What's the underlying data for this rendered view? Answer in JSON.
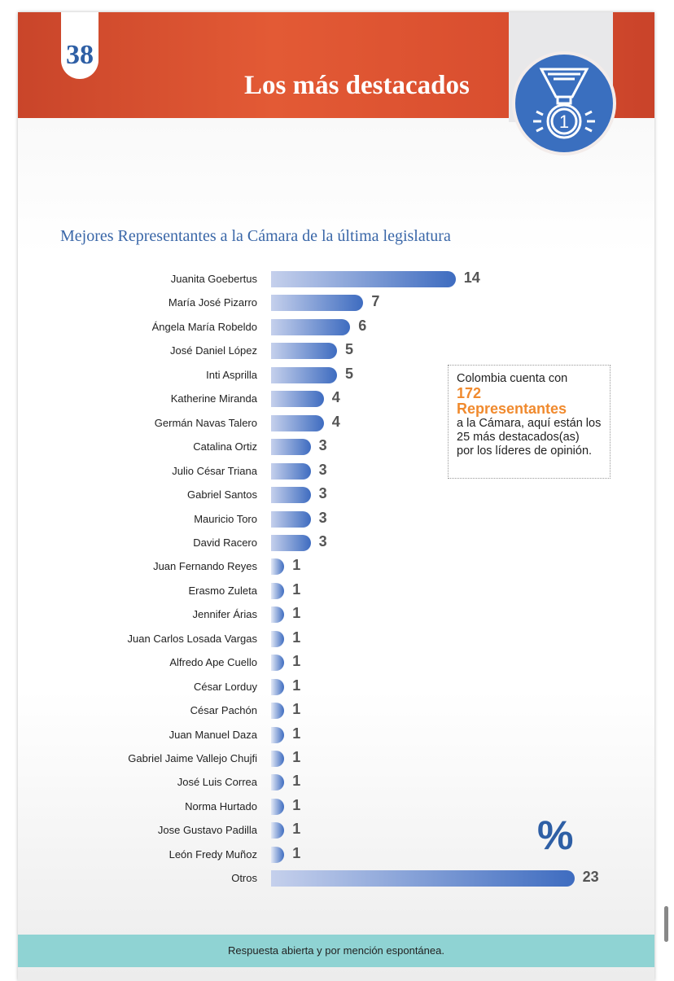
{
  "header": {
    "page_number": "38",
    "title": "Los más destacados",
    "icon": "medal-icon"
  },
  "chart_data": {
    "type": "bar",
    "orientation": "horizontal",
    "title": "Mejores Representantes a la Cámara de la última legislatura",
    "categories": [
      "Juanita Goebertus",
      "María José Pizarro",
      "Ángela María Robeldo",
      "José Daniel López",
      "Inti Asprilla",
      "Katherine Miranda",
      "Germán Navas Talero",
      "Catalina Ortiz",
      "Julio César Triana",
      "Gabriel Santos",
      "Mauricio Toro",
      "David Racero",
      "Juan Fernando Reyes",
      "Erasmo Zuleta",
      "Jennifer Árias",
      "Juan Carlos Losada Vargas",
      "Alfredo Ape Cuello",
      "César Lorduy",
      "César Pachón",
      "Juan Manuel Daza",
      "Gabriel Jaime Vallejo Chujfi",
      "José Luis Correa",
      "Norma Hurtado",
      "Jose Gustavo Padilla",
      "León Fredy Muñoz",
      "Otros"
    ],
    "values": [
      14,
      7,
      6,
      5,
      5,
      4,
      4,
      3,
      3,
      3,
      3,
      3,
      1,
      1,
      1,
      1,
      1,
      1,
      1,
      1,
      1,
      1,
      1,
      1,
      1,
      23
    ],
    "unit": "%",
    "colors": {
      "bar_start": "#c5d0ec",
      "bar_end": "#3e6cc0"
    }
  },
  "note": {
    "line1": "Colombia cuenta con",
    "highlight1": "172",
    "highlight2": "Representantes",
    "line2": "a la Cámara, aquí están  los",
    "line3": "25 más destacados(as)",
    "line4": "por los líderes de opinión."
  },
  "percent_symbol": "%",
  "footer": "Respuesta abierta y por mención espontánea."
}
